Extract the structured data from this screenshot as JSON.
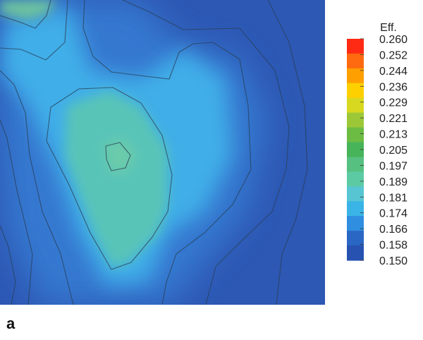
{
  "panel_label": "a",
  "chart_data": {
    "type": "heatmap",
    "title": "",
    "xlabel": "",
    "ylabel": "",
    "colorbar": {
      "title": "Eff.",
      "ticks": [
        "0.260",
        "0.252",
        "0.244",
        "0.236",
        "0.229",
        "0.221",
        "0.213",
        "0.205",
        "0.197",
        "0.189",
        "0.181",
        "0.174",
        "0.166",
        "0.158",
        "0.150"
      ],
      "range": [
        0.15,
        0.26
      ],
      "colors": [
        "#ff2a14",
        "#ff6a10",
        "#ffa000",
        "#ffd000",
        "#d8d820",
        "#9cc838",
        "#6cbc44",
        "#48b45a",
        "#56c080",
        "#5ccba4",
        "#57c6d2",
        "#3ab4e6",
        "#2f8ee0",
        "#2a66c4",
        "#2752b2"
      ]
    },
    "grid": false,
    "legend_placement": "right",
    "field_description_levels": {
      "background_min": 0.155,
      "channel": 0.175,
      "center_plateau": 0.182,
      "center_peak": 0.188,
      "top_left_peak": 0.19
    }
  }
}
